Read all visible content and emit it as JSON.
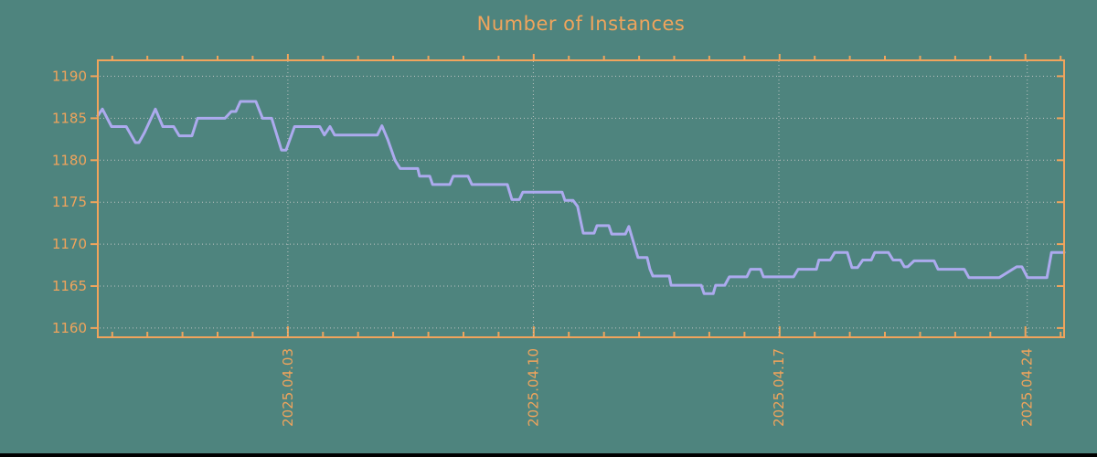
{
  "colors": {
    "background": "#4E847E",
    "axis_and_text": "#F0A45C",
    "line": "#ACAAEE",
    "grid_dots": "#C9C9C9",
    "bottom_bar": "#000000"
  },
  "chart_data": {
    "type": "line",
    "title": "Number of Instances",
    "xlabel": "",
    "ylabel": "",
    "grid": "dotted",
    "legend": "none",
    "x_axis": {
      "unit": "days from chart start (approx 2025-03-28 12:00)",
      "range_days": [
        0,
        27.51
      ],
      "first_minor_tick_day": 0.41,
      "minor_tick_interval_days": 1,
      "tick_label_rotation_deg": -90,
      "major_gridlines": [
        {
          "day": 5.41,
          "label": "2025.04.03"
        },
        {
          "day": 12.4,
          "label": "2025.04.10"
        },
        {
          "day": 19.39,
          "label": "2025.04.17"
        },
        {
          "day": 26.46,
          "label": "2025.04.24"
        }
      ]
    },
    "y_axis": {
      "range": [
        1158.9,
        1191.9
      ],
      "ticks": [
        1160,
        1165,
        1170,
        1175,
        1180,
        1185,
        1190
      ]
    },
    "series": [
      {
        "name": "Number of Instances",
        "points": [
          [
            0.0,
            1185.3
          ],
          [
            0.13,
            1186.1
          ],
          [
            0.39,
            1184.0
          ],
          [
            0.81,
            1184.0
          ],
          [
            1.07,
            1182.1
          ],
          [
            1.17,
            1182.1
          ],
          [
            1.33,
            1183.3
          ],
          [
            1.64,
            1186.1
          ],
          [
            1.85,
            1184.0
          ],
          [
            2.16,
            1184.0
          ],
          [
            2.32,
            1182.9
          ],
          [
            2.68,
            1182.9
          ],
          [
            2.84,
            1185.0
          ],
          [
            3.62,
            1185.0
          ],
          [
            3.8,
            1185.8
          ],
          [
            3.93,
            1185.8
          ],
          [
            4.06,
            1187.0
          ],
          [
            4.5,
            1187.0
          ],
          [
            4.69,
            1185.0
          ],
          [
            4.95,
            1185.0
          ],
          [
            5.23,
            1181.2
          ],
          [
            5.36,
            1181.2
          ],
          [
            5.6,
            1184.0
          ],
          [
            6.32,
            1184.0
          ],
          [
            6.45,
            1183.0
          ],
          [
            6.61,
            1184.0
          ],
          [
            6.74,
            1183.0
          ],
          [
            7.96,
            1183.0
          ],
          [
            8.09,
            1184.1
          ],
          [
            8.25,
            1182.5
          ],
          [
            8.46,
            1180.0
          ],
          [
            8.61,
            1179.0
          ],
          [
            9.11,
            1179.0
          ],
          [
            9.16,
            1178.1
          ],
          [
            9.45,
            1178.1
          ],
          [
            9.53,
            1177.1
          ],
          [
            10.02,
            1177.1
          ],
          [
            10.12,
            1178.1
          ],
          [
            10.54,
            1178.1
          ],
          [
            10.65,
            1177.1
          ],
          [
            11.66,
            1177.1
          ],
          [
            11.79,
            1175.3
          ],
          [
            12.0,
            1175.3
          ],
          [
            12.1,
            1176.2
          ],
          [
            13.22,
            1176.2
          ],
          [
            13.3,
            1175.2
          ],
          [
            13.53,
            1175.2
          ],
          [
            13.66,
            1174.5
          ],
          [
            13.82,
            1171.3
          ],
          [
            14.13,
            1171.3
          ],
          [
            14.21,
            1172.2
          ],
          [
            14.55,
            1172.2
          ],
          [
            14.63,
            1171.2
          ],
          [
            15.02,
            1171.2
          ],
          [
            15.12,
            1172.1
          ],
          [
            15.23,
            1170.5
          ],
          [
            15.38,
            1168.4
          ],
          [
            15.64,
            1168.4
          ],
          [
            15.72,
            1167.0
          ],
          [
            15.8,
            1166.2
          ],
          [
            16.27,
            1166.2
          ],
          [
            16.32,
            1165.1
          ],
          [
            17.18,
            1165.1
          ],
          [
            17.26,
            1164.1
          ],
          [
            17.52,
            1164.1
          ],
          [
            17.59,
            1165.1
          ],
          [
            17.85,
            1165.1
          ],
          [
            17.98,
            1166.1
          ],
          [
            18.48,
            1166.1
          ],
          [
            18.58,
            1167.0
          ],
          [
            18.87,
            1167.0
          ],
          [
            18.95,
            1166.1
          ],
          [
            19.81,
            1166.1
          ],
          [
            19.94,
            1167.0
          ],
          [
            20.46,
            1167.0
          ],
          [
            20.53,
            1168.1
          ],
          [
            20.85,
            1168.1
          ],
          [
            20.98,
            1169.0
          ],
          [
            21.34,
            1169.0
          ],
          [
            21.47,
            1167.2
          ],
          [
            21.63,
            1167.2
          ],
          [
            21.78,
            1168.1
          ],
          [
            22.02,
            1168.1
          ],
          [
            22.12,
            1169.0
          ],
          [
            22.51,
            1169.0
          ],
          [
            22.64,
            1168.1
          ],
          [
            22.85,
            1168.1
          ],
          [
            22.96,
            1167.3
          ],
          [
            23.06,
            1167.3
          ],
          [
            23.24,
            1168.0
          ],
          [
            23.81,
            1168.0
          ],
          [
            23.92,
            1167.0
          ],
          [
            24.67,
            1167.0
          ],
          [
            24.8,
            1166.0
          ],
          [
            25.66,
            1166.0
          ],
          [
            26.16,
            1167.3
          ],
          [
            26.31,
            1167.3
          ],
          [
            26.47,
            1166.0
          ],
          [
            27.02,
            1166.0
          ],
          [
            27.15,
            1169.0
          ],
          [
            27.51,
            1169.0
          ]
        ]
      }
    ]
  }
}
